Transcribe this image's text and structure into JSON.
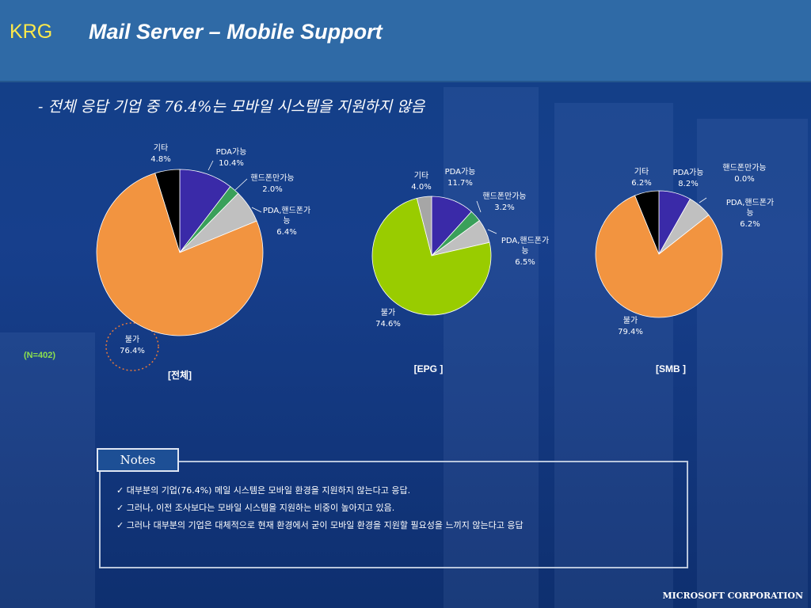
{
  "header": {
    "logo": "KRG",
    "title": "Mail Server – Mobile Support"
  },
  "subtitle": "- 전체 응답 기업 중 76.4%는 모바일 시스템을 지원하지 않음",
  "sample_size": "(N=402)",
  "chart_data": [
    {
      "type": "pie",
      "caption": "[전체]",
      "slices": [
        {
          "name": "PDA가능",
          "value": 10.4,
          "label": "10.4%",
          "color": "#3a2aa8"
        },
        {
          "name": "핸드폰만가능",
          "value": 2.0,
          "label": "2.0%",
          "color": "#3aa05a"
        },
        {
          "name": "PDA,핸드폰가능",
          "value": 6.4,
          "label": "6.4%",
          "color": "#c0c0c0"
        },
        {
          "name": "불가",
          "value": 76.4,
          "label": "76.4%",
          "color": "#f29440"
        },
        {
          "name": "기타",
          "value": 4.8,
          "label": "4.8%",
          "color": "#000000"
        }
      ]
    },
    {
      "type": "pie",
      "caption": "[EPG ]",
      "slices": [
        {
          "name": "PDA가능",
          "value": 11.7,
          "label": "11.7%",
          "color": "#3a2aa8"
        },
        {
          "name": "핸드폰만가능",
          "value": 3.2,
          "label": "3.2%",
          "color": "#3aa05a"
        },
        {
          "name": "PDA,핸드폰가능",
          "value": 6.5,
          "label": "6.5%",
          "color": "#c0c0c0"
        },
        {
          "name": "불가",
          "value": 74.6,
          "label": "74.6%",
          "color": "#99cc00"
        },
        {
          "name": "기타",
          "value": 4.0,
          "label": "4.0%",
          "color": "#a6a6a6"
        }
      ]
    },
    {
      "type": "pie",
      "caption": "[SMB ]",
      "slices": [
        {
          "name": "PDA가능",
          "value": 8.2,
          "label": "8.2%",
          "color": "#3a2aa8"
        },
        {
          "name": "핸드폰만가능",
          "value": 0.0,
          "label": "0.0%",
          "color": "#3aa05a"
        },
        {
          "name": "PDA,핸드폰가능",
          "value": 6.2,
          "label": "6.2%",
          "color": "#c0c0c0"
        },
        {
          "name": "불가",
          "value": 79.4,
          "label": "79.4%",
          "color": "#f29440"
        },
        {
          "name": "기타",
          "value": 6.2,
          "label": "6.2%",
          "color": "#000000"
        }
      ]
    }
  ],
  "notes": {
    "tab_label": "Notes",
    "items": [
      "✓ 대부분의 기업(76.4%) 메일 시스템은 모바일 환경을 지원하지 않는다고 응답.",
      "✓ 그러나, 이전 조사보다는 모바일 시스템을 지원하는 비중이 높아지고 있음.",
      "✓ 그러나 대부분의 기업은 대체적으로 현재 환경에서 굳이 모바일 환경을 지원할 필요성을 느끼지 않는다고 응답"
    ]
  },
  "footer": "MICROSOFT CORPORATION"
}
